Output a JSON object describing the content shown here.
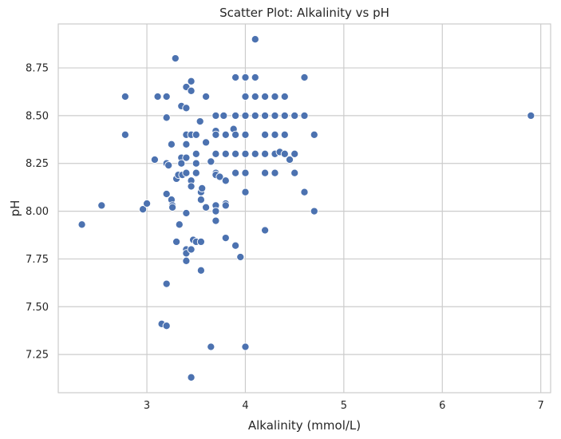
{
  "chart_data": {
    "type": "scatter",
    "title": "Scatter Plot: Alkalinity vs pH",
    "xlabel": "Alkalinity (mmol/L)",
    "ylabel": "pH",
    "xlim": [
      2.1,
      7.1
    ],
    "ylim": [
      7.05,
      8.98
    ],
    "xticks": [
      3,
      4,
      5,
      6,
      7
    ],
    "yticks": [
      7.25,
      7.5,
      7.75,
      8.0,
      8.25,
      8.5,
      8.75
    ],
    "xtick_labels": [
      "3",
      "4",
      "5",
      "6",
      "7"
    ],
    "ytick_labels": [
      "7.25",
      "7.50",
      "7.75",
      "8.00",
      "8.25",
      "8.50",
      "8.75"
    ],
    "grid": true,
    "marker_color": "#4c72b0",
    "marker_edge_color": "#ffffff",
    "background_color": "#ffffff",
    "grid_color": "#cccccc",
    "points": [
      [
        2.34,
        7.93
      ],
      [
        2.54,
        8.03
      ],
      [
        2.78,
        8.6
      ],
      [
        2.78,
        8.4
      ],
      [
        2.96,
        8.01
      ],
      [
        3.0,
        8.04
      ],
      [
        3.08,
        8.27
      ],
      [
        3.11,
        8.6
      ],
      [
        3.15,
        7.41
      ],
      [
        3.2,
        8.6
      ],
      [
        3.2,
        8.49
      ],
      [
        3.2,
        8.25
      ],
      [
        3.2,
        8.09
      ],
      [
        3.2,
        7.62
      ],
      [
        3.2,
        7.4
      ],
      [
        3.22,
        8.24
      ],
      [
        3.25,
        8.35
      ],
      [
        3.25,
        8.06
      ],
      [
        3.26,
        8.03
      ],
      [
        3.26,
        8.02
      ],
      [
        3.29,
        8.8
      ],
      [
        3.3,
        8.17
      ],
      [
        3.3,
        7.84
      ],
      [
        3.32,
        8.19
      ],
      [
        3.33,
        7.93
      ],
      [
        3.35,
        8.55
      ],
      [
        3.35,
        8.28
      ],
      [
        3.35,
        8.25
      ],
      [
        3.36,
        8.19
      ],
      [
        3.4,
        8.65
      ],
      [
        3.4,
        8.54
      ],
      [
        3.4,
        8.4
      ],
      [
        3.4,
        8.35
      ],
      [
        3.4,
        8.28
      ],
      [
        3.4,
        8.2
      ],
      [
        3.4,
        7.99
      ],
      [
        3.4,
        7.8
      ],
      [
        3.4,
        7.78
      ],
      [
        3.4,
        7.74
      ],
      [
        3.45,
        8.68
      ],
      [
        3.45,
        8.63
      ],
      [
        3.45,
        8.4
      ],
      [
        3.45,
        8.16
      ],
      [
        3.45,
        8.13
      ],
      [
        3.45,
        7.8
      ],
      [
        3.45,
        7.13
      ],
      [
        3.47,
        7.85
      ],
      [
        3.5,
        8.4
      ],
      [
        3.5,
        8.3
      ],
      [
        3.5,
        8.25
      ],
      [
        3.5,
        8.2
      ],
      [
        3.5,
        7.84
      ],
      [
        3.54,
        8.47
      ],
      [
        3.55,
        8.1
      ],
      [
        3.55,
        8.06
      ],
      [
        3.55,
        7.84
      ],
      [
        3.55,
        7.69
      ],
      [
        3.56,
        8.12
      ],
      [
        3.6,
        8.6
      ],
      [
        3.6,
        8.36
      ],
      [
        3.6,
        8.02
      ],
      [
        3.65,
        8.26
      ],
      [
        3.65,
        7.29
      ],
      [
        3.7,
        8.5
      ],
      [
        3.7,
        8.42
      ],
      [
        3.7,
        8.4
      ],
      [
        3.7,
        8.3
      ],
      [
        3.7,
        8.2
      ],
      [
        3.7,
        8.19
      ],
      [
        3.7,
        8.03
      ],
      [
        3.7,
        8.0
      ],
      [
        3.7,
        7.95
      ],
      [
        3.74,
        8.18
      ],
      [
        3.78,
        8.5
      ],
      [
        3.8,
        8.4
      ],
      [
        3.8,
        8.3
      ],
      [
        3.8,
        8.16
      ],
      [
        3.8,
        8.04
      ],
      [
        3.8,
        8.03
      ],
      [
        3.8,
        7.86
      ],
      [
        3.88,
        8.43
      ],
      [
        3.9,
        8.7
      ],
      [
        3.9,
        8.5
      ],
      [
        3.9,
        8.4
      ],
      [
        3.9,
        8.3
      ],
      [
        3.9,
        8.2
      ],
      [
        3.9,
        7.82
      ],
      [
        3.95,
        7.76
      ],
      [
        4.0,
        8.7
      ],
      [
        4.0,
        8.6
      ],
      [
        4.0,
        8.5
      ],
      [
        4.0,
        8.4
      ],
      [
        4.0,
        8.3
      ],
      [
        4.0,
        8.2
      ],
      [
        4.0,
        8.1
      ],
      [
        4.0,
        7.29
      ],
      [
        4.1,
        8.9
      ],
      [
        4.1,
        8.7
      ],
      [
        4.1,
        8.6
      ],
      [
        4.1,
        8.5
      ],
      [
        4.1,
        8.3
      ],
      [
        4.2,
        8.6
      ],
      [
        4.2,
        8.5
      ],
      [
        4.2,
        8.4
      ],
      [
        4.2,
        8.3
      ],
      [
        4.2,
        8.2
      ],
      [
        4.2,
        7.9
      ],
      [
        4.3,
        8.6
      ],
      [
        4.3,
        8.5
      ],
      [
        4.3,
        8.4
      ],
      [
        4.3,
        8.3
      ],
      [
        4.3,
        8.2
      ],
      [
        4.35,
        8.31
      ],
      [
        4.4,
        8.6
      ],
      [
        4.4,
        8.5
      ],
      [
        4.4,
        8.4
      ],
      [
        4.4,
        8.3
      ],
      [
        4.45,
        8.27
      ],
      [
        4.5,
        8.5
      ],
      [
        4.5,
        8.3
      ],
      [
        4.5,
        8.2
      ],
      [
        4.6,
        8.7
      ],
      [
        4.6,
        8.5
      ],
      [
        4.6,
        8.1
      ],
      [
        4.7,
        8.4
      ],
      [
        4.7,
        8.0
      ],
      [
        6.9,
        8.5
      ]
    ]
  }
}
